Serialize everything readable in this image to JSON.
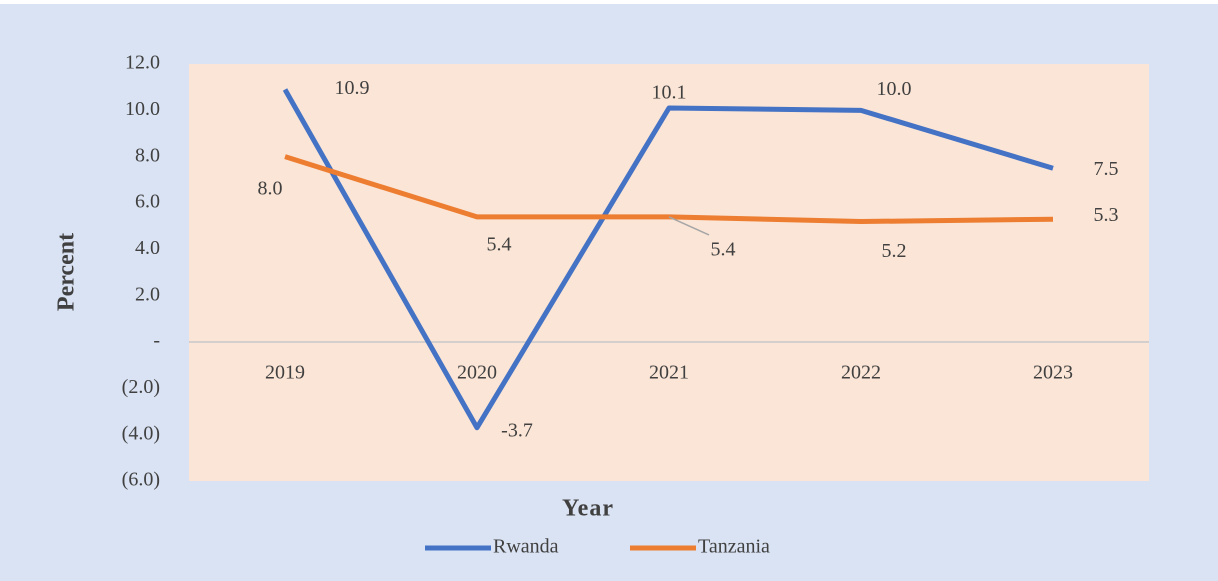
{
  "chart_data": {
    "type": "line",
    "x_label": "Year",
    "y_label": "Percent",
    "categories": [
      "2019",
      "2020",
      "2021",
      "2022",
      "2023"
    ],
    "series": [
      {
        "name": "Rwanda",
        "color": "#4472c4",
        "values": [
          10.9,
          -3.7,
          10.1,
          10.0,
          7.5
        ],
        "value_labels": [
          "10.9",
          "-3.7",
          "10.1",
          "10.0",
          "7.5"
        ]
      },
      {
        "name": "Tanzania",
        "color": "#ed7d31",
        "values": [
          8.0,
          5.4,
          5.4,
          5.2,
          5.3
        ],
        "value_labels": [
          "8.0",
          "5.4",
          "5.4",
          "5.2",
          "5.3"
        ]
      }
    ],
    "ylim": [
      -6,
      12
    ],
    "yticks": [
      {
        "value": -6,
        "label": "(6.0)"
      },
      {
        "value": -4,
        "label": "(4.0)"
      },
      {
        "value": -2,
        "label": "(2.0)"
      },
      {
        "value": 0,
        "label": "-"
      },
      {
        "value": 2,
        "label": "2.0"
      },
      {
        "value": 4,
        "label": "4.0"
      },
      {
        "value": 6,
        "label": "6.0"
      },
      {
        "value": 8,
        "label": "8.0"
      },
      {
        "value": 10,
        "label": "10.0"
      },
      {
        "value": 12,
        "label": "12.0"
      }
    ],
    "grid": false,
    "legend": "bottom"
  }
}
